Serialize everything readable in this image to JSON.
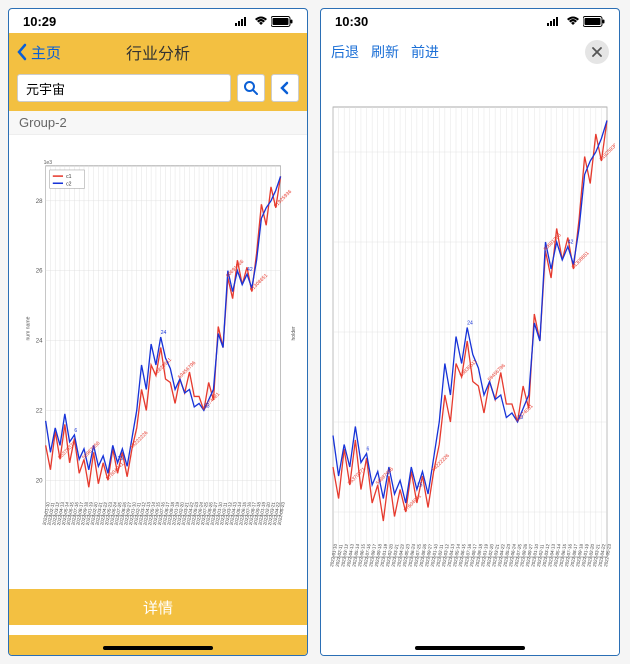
{
  "left": {
    "statusTime": "10:29",
    "backLabel": "主页",
    "title": "行业分析",
    "searchValue": "元宇宙",
    "groupLabel": "Group-2",
    "detailsLabel": "详情"
  },
  "right": {
    "statusTime": "10:30",
    "navBack": "后退",
    "navRefresh": "刷新",
    "navForward": "前进"
  },
  "chart": {
    "type": "line",
    "legend": [
      "c1",
      "c2"
    ],
    "colors": {
      "c1": "#e63a2e",
      "c2": "#1733d8"
    },
    "ylabelLeft": "num name",
    "ylabelRight": "holder",
    "ylabelSmall": "1e3",
    "ylim": [
      19,
      29
    ],
    "yticks": [
      20,
      22,
      24,
      26,
      28
    ],
    "background": "#ffffff",
    "gridColor": "#dddddd",
    "c1": [
      21.0,
      20.3,
      21.4,
      20.6,
      21.6,
      20.5,
      21.2,
      20.2,
      20.6,
      19.8,
      20.8,
      19.9,
      20.5,
      20.0,
      20.9,
      20.2,
      20.8,
      20.1,
      20.9,
      21.5,
      22.6,
      22.0,
      23.3,
      23.0,
      23.8,
      22.9,
      22.8,
      22.2,
      22.9,
      22.5,
      23.1,
      22.4,
      22.4,
      22.0,
      22.8,
      22.3,
      24.4,
      23.8,
      25.8,
      25.2,
      26.3,
      25.6,
      26.1,
      25.4,
      26.5,
      27.9,
      27.3,
      28.4,
      27.8,
      28.7
    ],
    "c2": [
      21.7,
      20.8,
      21.5,
      21.0,
      21.9,
      21.1,
      21.3,
      20.6,
      20.9,
      20.3,
      21.0,
      20.4,
      20.7,
      20.2,
      21.0,
      20.5,
      20.9,
      20.4,
      21.2,
      22.0,
      23.3,
      22.6,
      23.9,
      23.3,
      24.1,
      23.5,
      23.2,
      22.6,
      22.9,
      22.5,
      22.6,
      22.1,
      22.2,
      22.0,
      22.3,
      22.6,
      24.2,
      23.8,
      26.0,
      25.4,
      26.0,
      25.6,
      25.9,
      25.5,
      26.3,
      27.5,
      27.8,
      28.0,
      28.3,
      28.7
    ],
    "xlabelsNote": "dense rotated date labels"
  }
}
